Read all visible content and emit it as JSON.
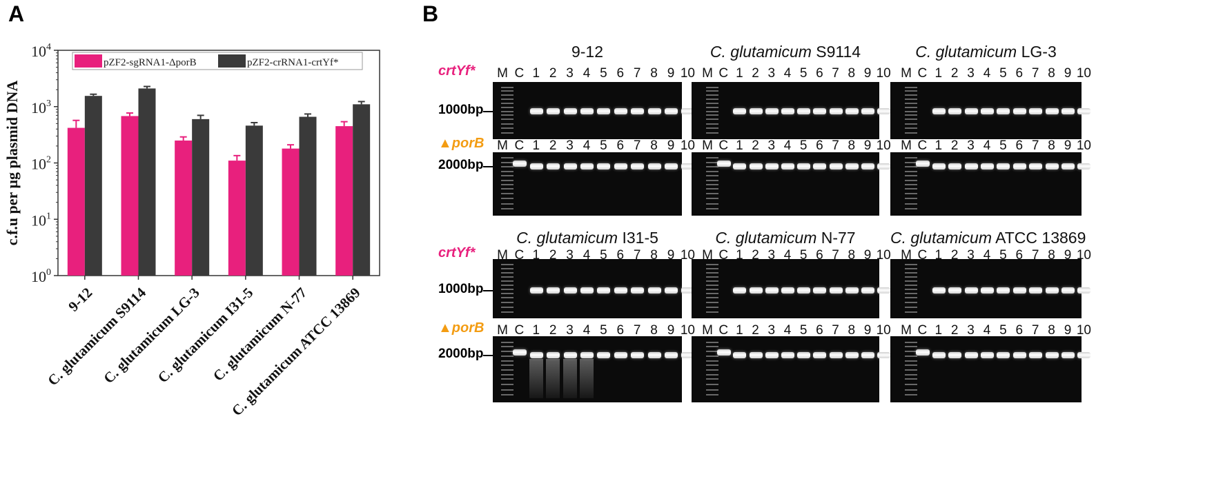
{
  "panel_a": {
    "letter": "A"
  },
  "panel_b": {
    "letter": "B"
  },
  "chart_data": {
    "type": "bar",
    "scale": "log",
    "ylabel": "c.f.u per µg plasmid DNA",
    "ylim": [
      1,
      10000
    ],
    "yticks": [
      {
        "value": 1,
        "base": "10",
        "exp": "0"
      },
      {
        "value": 10,
        "base": "10",
        "exp": "1"
      },
      {
        "value": 100,
        "base": "10",
        "exp": "2"
      },
      {
        "value": 1000,
        "base": "10",
        "exp": "3"
      },
      {
        "value": 10000,
        "base": "10",
        "exp": "4"
      }
    ],
    "categories": [
      "9-12",
      "C. glutamicum S9114",
      "C. glutamicum LG-3",
      "C. glutamicum I31-5",
      "C. glutamicum N-77",
      "C. glutamicum ATCC 13869"
    ],
    "legend_position": "top",
    "series": [
      {
        "name": "pZF2-sgRNA1-ΔporB",
        "color": "#e8207d",
        "values": [
          420,
          680,
          250,
          110,
          180,
          450
        ],
        "errors": [
          150,
          90,
          40,
          25,
          30,
          90
        ]
      },
      {
        "name": "pZF2-crRNA1-crtYf*",
        "color": "#3a3a3a",
        "values": [
          1550,
          2100,
          600,
          460,
          660,
          1100
        ],
        "errors": [
          110,
          180,
          100,
          60,
          80,
          130
        ]
      }
    ]
  },
  "gel_panel": {
    "row_labels": [
      {
        "text": "crtYf*",
        "color": "#e8207d"
      },
      {
        "text": "▲porB",
        "color": "#f39c12"
      },
      {
        "text": "crtYf*",
        "color": "#e8207d"
      },
      {
        "text": "▲porB",
        "color": "#f39c12"
      }
    ],
    "size_markers": [
      "1000bp",
      "2000bp",
      "1000bp",
      "2000bp"
    ],
    "lane_labels": [
      "M",
      "C",
      "1",
      "2",
      "3",
      "4",
      "5",
      "6",
      "7",
      "8",
      "9",
      "10"
    ],
    "strains": [
      {
        "prefix": "",
        "name": "9-12"
      },
      {
        "prefix": "C. glutamicum",
        "name": "S9114"
      },
      {
        "prefix": "C. glutamicum",
        "name": "LG-3"
      },
      {
        "prefix": "C. glutamicum",
        "name": "I31-5"
      },
      {
        "prefix": "C. glutamicum",
        "name": "N-77"
      },
      {
        "prefix": "C. glutamicum",
        "name": "ATCC 13869"
      }
    ]
  }
}
